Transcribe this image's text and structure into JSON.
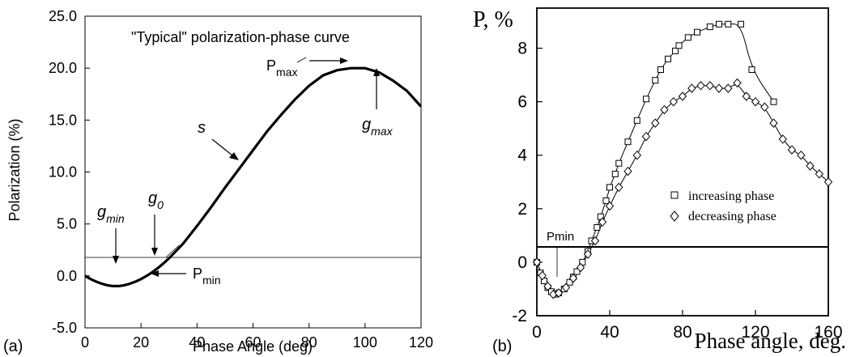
{
  "chart_data": [
    {
      "panel_label": "(a)",
      "type": "line",
      "title": "\"Typical\" polarization-phase curve",
      "xlabel": "Phase Angle (deg)",
      "ylabel": "Polarization (%)",
      "xlim": [
        0,
        120
      ],
      "ylim": [
        -5,
        25
      ],
      "xticks": [
        "0",
        "20",
        "40",
        "60",
        "80",
        "100",
        "120"
      ],
      "yticks": [
        "-5.0",
        "0.0",
        "5.0",
        "10.0",
        "15.0",
        "20.0",
        "25.0"
      ],
      "grid": false,
      "series": [
        {
          "x": [
            0,
            2,
            4,
            6,
            8,
            10,
            12,
            14,
            16,
            18,
            20,
            22,
            24,
            26,
            28,
            30,
            35,
            40,
            45,
            50,
            55,
            60,
            65,
            70,
            75,
            80,
            85,
            90,
            95,
            100,
            105,
            110,
            115,
            120
          ],
          "y": [
            0.0,
            -0.3,
            -0.55,
            -0.75,
            -0.9,
            -0.98,
            -0.98,
            -0.9,
            -0.75,
            -0.55,
            -0.3,
            0.0,
            0.35,
            0.75,
            1.2,
            1.7,
            3.1,
            4.8,
            6.6,
            8.5,
            10.3,
            12.1,
            13.9,
            15.5,
            17.0,
            18.3,
            19.3,
            19.8,
            20.0,
            20.0,
            19.6,
            18.8,
            17.8,
            16.3
          ]
        }
      ],
      "annotations": {
        "gmin": {
          "base": "g",
          "sub": "min",
          "at": [
            11,
            -1.0
          ]
        },
        "g0": {
          "base": "g",
          "sub": "0",
          "at": [
            23,
            0.0
          ]
        },
        "pmin": {
          "base": "P",
          "sub": "min",
          "at": [
            22,
            -0.5
          ]
        },
        "s": {
          "base": "s",
          "at": [
            52,
            8.5
          ]
        },
        "pmax": {
          "base": "P",
          "sub": "max",
          "at": [
            88,
            20.0
          ]
        },
        "gmax": {
          "base": "g",
          "sub": "max",
          "at": [
            100,
            19.6
          ]
        }
      }
    },
    {
      "panel_label": "(b)",
      "type": "scatter",
      "xlabel": "Phase angle, deg.",
      "ylabel": "P, %",
      "xlim": [
        0,
        160
      ],
      "ylim": [
        -2,
        9.5
      ],
      "xticks": [
        "0",
        "40",
        "80",
        "120",
        "160"
      ],
      "yticks": [
        "-2",
        "0",
        "2",
        "4",
        "6",
        "8"
      ],
      "grid": false,
      "legend_position": "center-right",
      "annotation": "Pmin",
      "series": [
        {
          "name": "increasing phase",
          "marker": "square",
          "x": [
            0,
            2,
            4,
            6,
            8,
            10,
            12,
            15,
            18,
            20,
            22,
            25,
            28,
            30,
            33,
            35,
            38,
            40,
            43,
            45,
            50,
            55,
            60,
            65,
            68,
            72,
            76,
            78,
            83,
            88,
            95,
            100,
            105,
            112,
            118,
            130
          ],
          "y": [
            0.0,
            -0.4,
            -0.7,
            -0.95,
            -1.1,
            -1.2,
            -1.15,
            -1.0,
            -0.75,
            -0.55,
            -0.35,
            0.0,
            0.4,
            0.8,
            1.3,
            1.7,
            2.3,
            2.8,
            3.3,
            3.7,
            4.5,
            5.3,
            6.1,
            6.8,
            7.2,
            7.6,
            7.9,
            8.1,
            8.4,
            8.6,
            8.8,
            8.9,
            8.9,
            8.9,
            7.2,
            6.0
          ]
        },
        {
          "name": "decreasing phase",
          "marker": "diamond",
          "x": [
            0,
            3,
            6,
            9,
            12,
            16,
            20,
            24,
            28,
            32,
            36,
            40,
            45,
            50,
            55,
            60,
            65,
            70,
            75,
            80,
            85,
            90,
            95,
            100,
            105,
            110,
            115,
            120,
            125,
            130,
            135,
            140,
            145,
            150,
            155,
            160
          ],
          "y": [
            0.0,
            -0.5,
            -0.9,
            -1.2,
            -1.15,
            -0.95,
            -0.6,
            -0.2,
            0.3,
            0.8,
            1.5,
            2.1,
            2.8,
            3.4,
            4.0,
            4.7,
            5.2,
            5.7,
            6.0,
            6.2,
            6.5,
            6.6,
            6.6,
            6.5,
            6.5,
            6.7,
            6.2,
            6.0,
            5.8,
            5.2,
            4.6,
            4.2,
            4.0,
            3.6,
            3.3,
            3.0
          ]
        }
      ]
    }
  ]
}
